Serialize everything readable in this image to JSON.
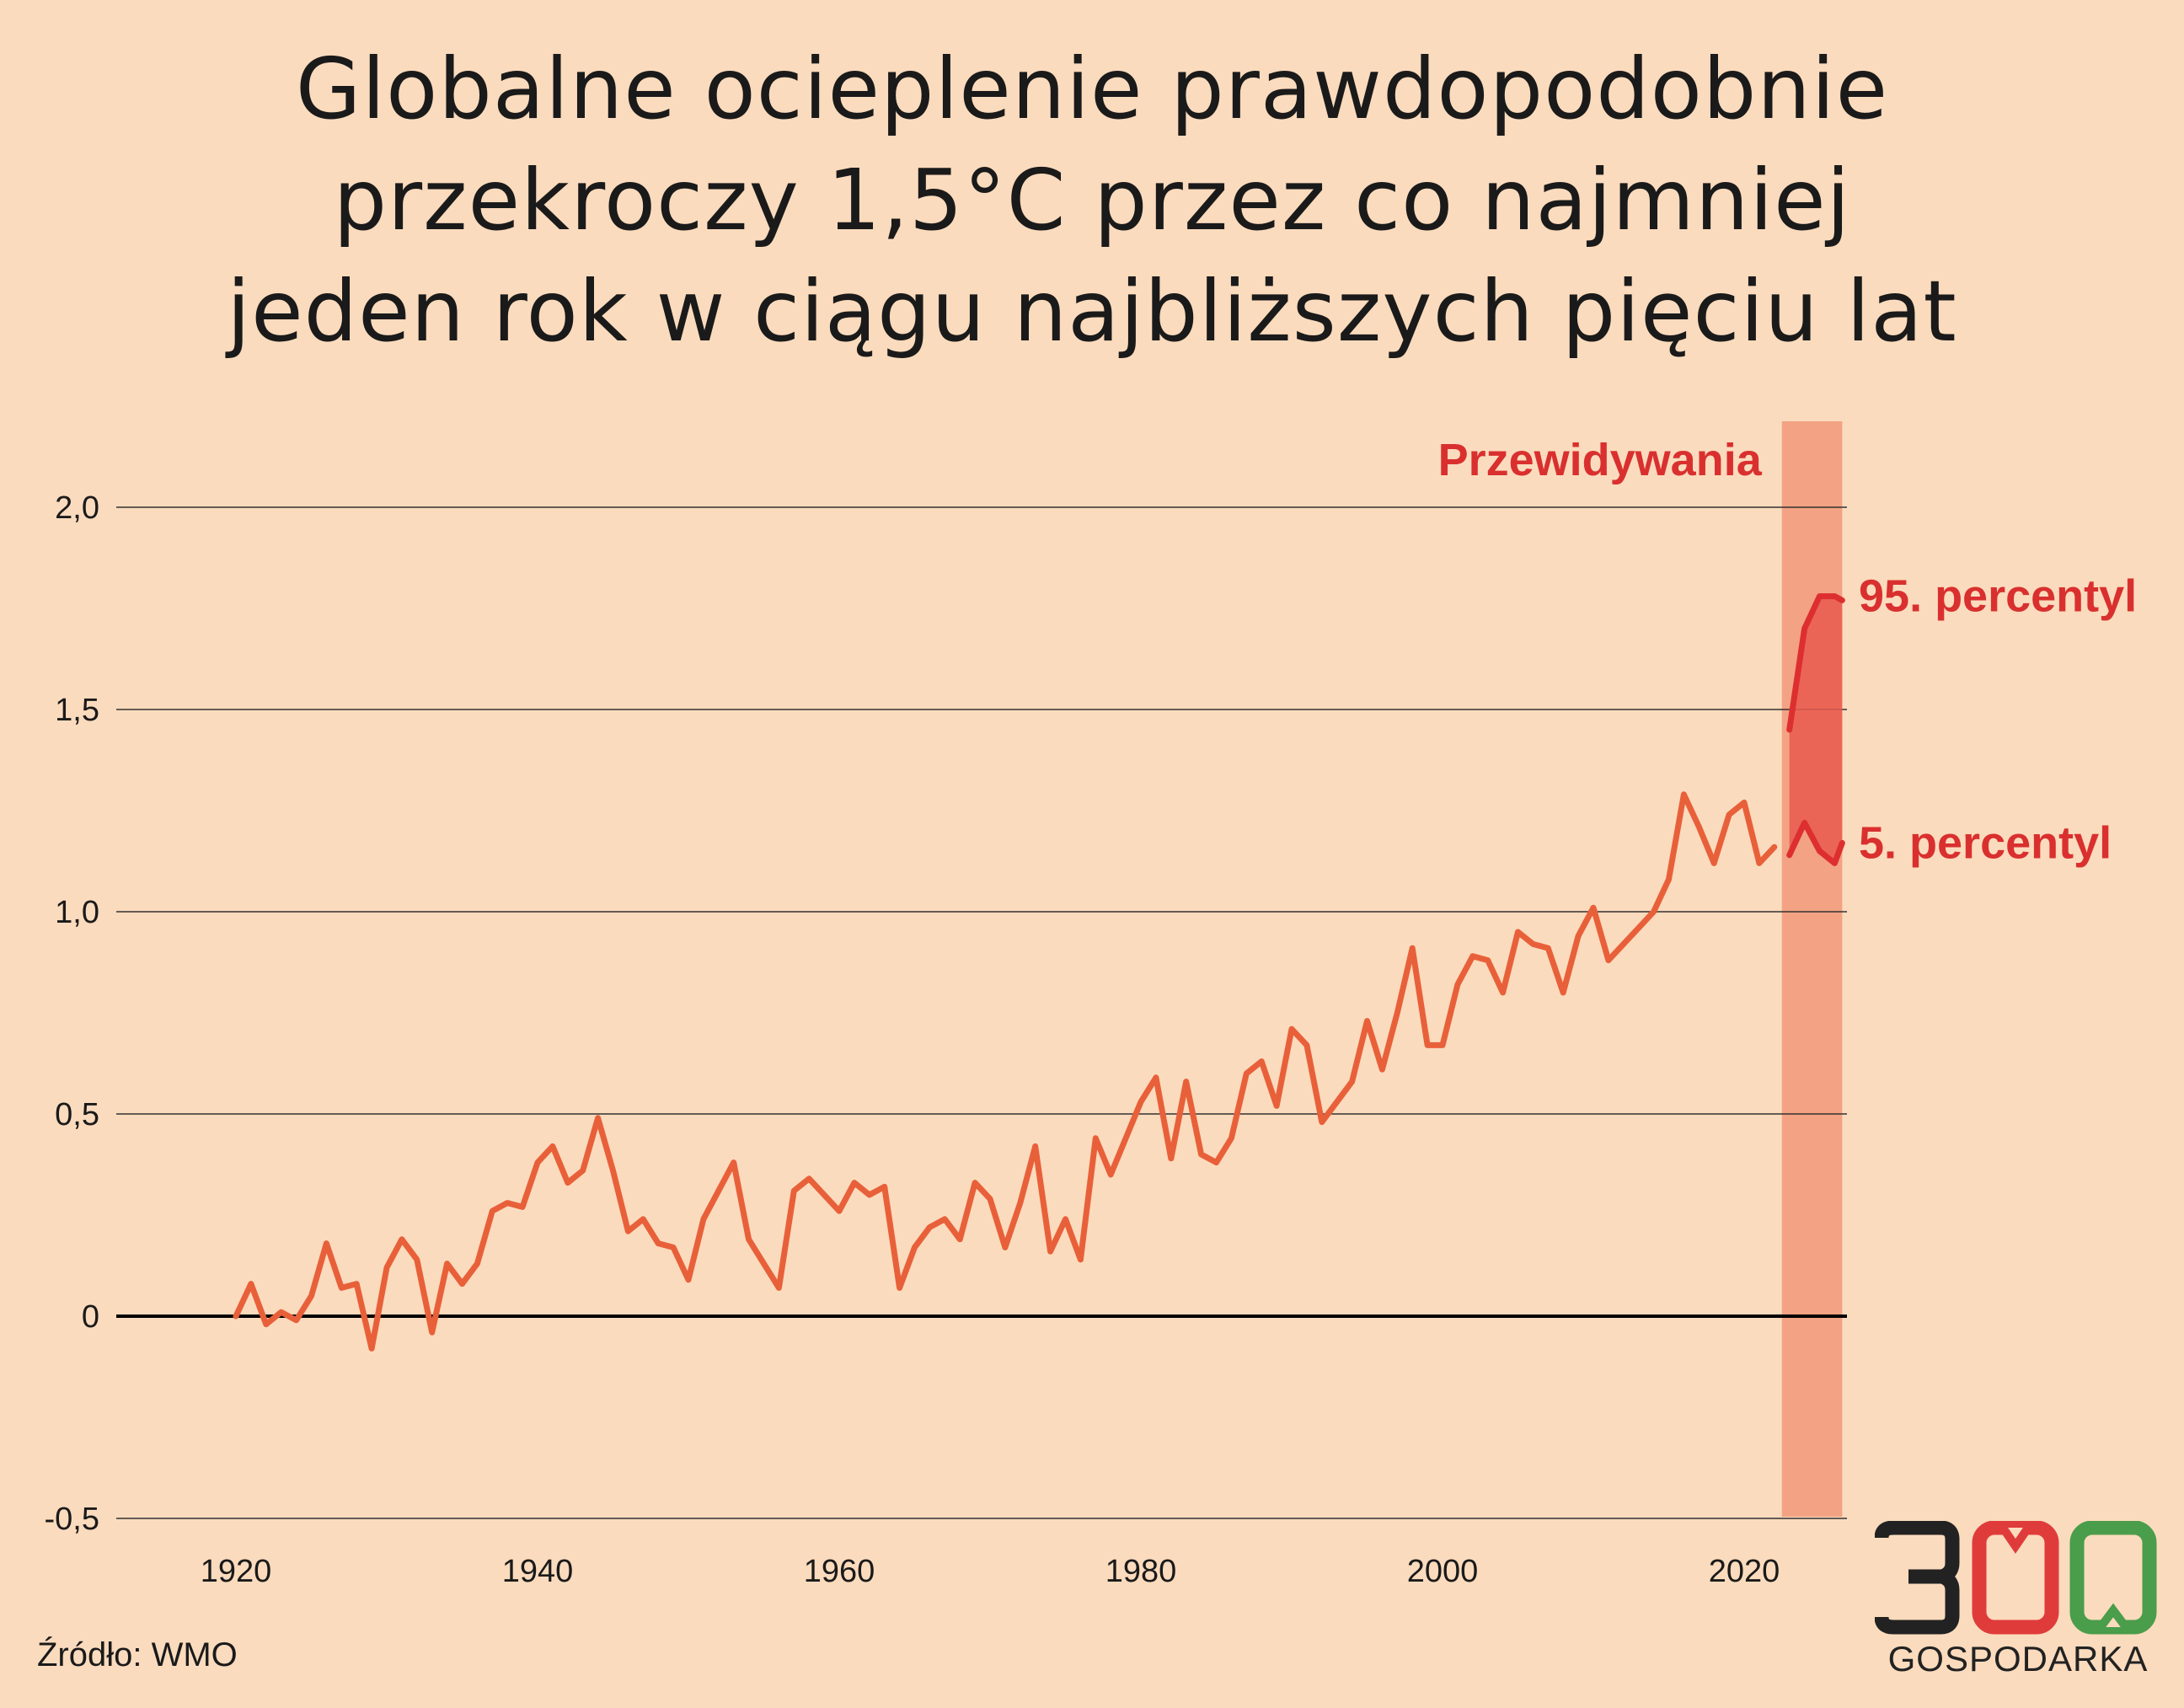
{
  "title_lines": [
    "Globalne ocieplenie prawdopodobnie",
    "przekroczy 1,5°C przez co najmniej",
    "jeden rok w ciągu najbliższych pięciu lat"
  ],
  "source": "Źródło: WMO",
  "logo": {
    "number": "300",
    "text": "GOSPODARKA"
  },
  "colors": {
    "background": "#fbdbbd",
    "series": "#e8603a",
    "forecast_band": "#f3a283",
    "forecast_fill": "#e95a4f",
    "forecast_line": "#dd2f2f",
    "annotation": "#d9302f",
    "logo_dark": "#222222",
    "logo_red": "#e03b3b",
    "logo_green": "#4a9d4a"
  },
  "chart_data": {
    "type": "line",
    "title": "Globalne ocieplenie prawdopodobnie przekroczy 1,5°C przez co najmniej jeden rok w ciągu najbliższych pięciu lat",
    "xlabel": "",
    "ylabel": "",
    "xlim": [
      1912,
      2026.5
    ],
    "ylim": [
      -0.5,
      2.2
    ],
    "x_ticks": [
      1920,
      1940,
      1960,
      1980,
      2000,
      2020
    ],
    "x_tick_labels": [
      "1920",
      "1940",
      "1960",
      "1980",
      "2000",
      "2020"
    ],
    "y_ticks": [
      -0.5,
      0,
      0.5,
      1.0,
      1.5,
      2.0
    ],
    "y_tick_labels": [
      "-0,5",
      "0",
      "0,5",
      "1,0",
      "1,5",
      "2,0"
    ],
    "grid": "horizontal",
    "forecast_region": {
      "x": [
        2022.5,
        2026.5
      ],
      "label": "Przewidywania"
    },
    "series": [
      {
        "x": [
          1920,
          1921,
          1922,
          1923,
          1924,
          1925,
          1926,
          1927,
          1928,
          1929,
          1930,
          1931,
          1932,
          1933,
          1934,
          1935,
          1936,
          1937,
          1938,
          1939,
          1940,
          1941,
          1942,
          1943,
          1944,
          1945,
          1946,
          1947,
          1948,
          1949,
          1950,
          1951,
          1952,
          1953,
          1954,
          1955,
          1956,
          1957,
          1958,
          1959,
          1960,
          1961,
          1962,
          1963,
          1964,
          1965,
          1966,
          1967,
          1968,
          1969,
          1970,
          1971,
          1972,
          1973,
          1974,
          1975,
          1976,
          1977,
          1978,
          1979,
          1980,
          1981,
          1982,
          1983,
          1984,
          1985,
          1986,
          1987,
          1988,
          1989,
          1990,
          1991,
          1992,
          1993,
          1994,
          1995,
          1996,
          1997,
          1998,
          1999,
          2000,
          2001,
          2002,
          2003,
          2004,
          2005,
          2006,
          2007,
          2008,
          2009,
          2010,
          2011,
          2012,
          2013,
          2014,
          2015,
          2016,
          2017,
          2018,
          2019,
          2020,
          2021,
          2022
        ],
        "values": [
          0.0,
          0.08,
          -0.02,
          0.01,
          -0.01,
          0.05,
          0.18,
          0.07,
          0.08,
          -0.08,
          0.12,
          0.19,
          0.14,
          -0.04,
          0.13,
          0.08,
          0.13,
          0.26,
          0.28,
          0.27,
          0.38,
          0.42,
          0.33,
          0.36,
          0.49,
          0.36,
          0.21,
          0.24,
          0.18,
          0.17,
          0.09,
          0.24,
          0.31,
          0.38,
          0.19,
          0.13,
          0.07,
          0.31,
          0.34,
          0.3,
          0.26,
          0.33,
          0.3,
          0.32,
          0.07,
          0.17,
          0.22,
          0.24,
          0.19,
          0.33,
          0.29,
          0.17,
          0.28,
          0.42,
          0.16,
          0.24,
          0.14,
          0.44,
          0.35,
          0.44,
          0.53,
          0.59,
          0.39,
          0.58,
          0.4,
          0.38,
          0.44,
          0.6,
          0.63,
          0.52,
          0.71,
          0.67,
          0.48,
          0.53,
          0.58,
          0.73,
          0.61,
          0.75,
          0.91,
          0.67,
          0.67,
          0.82,
          0.89,
          0.88,
          0.8,
          0.95,
          0.92,
          0.91,
          0.8,
          0.94,
          1.01,
          0.88,
          0.92,
          0.96,
          1.0,
          1.08,
          1.29,
          1.21,
          1.12,
          1.24,
          1.27,
          1.12,
          1.16
        ]
      },
      {
        "name": "95. percentyl",
        "x": [
          2023,
          2024,
          2025,
          2026,
          2026.5
        ],
        "values": [
          1.45,
          1.7,
          1.78,
          1.78,
          1.77
        ]
      },
      {
        "name": "5. percentyl",
        "x": [
          2023,
          2024,
          2025,
          2026,
          2026.5
        ],
        "values": [
          1.14,
          1.22,
          1.15,
          1.12,
          1.17
        ]
      }
    ]
  }
}
